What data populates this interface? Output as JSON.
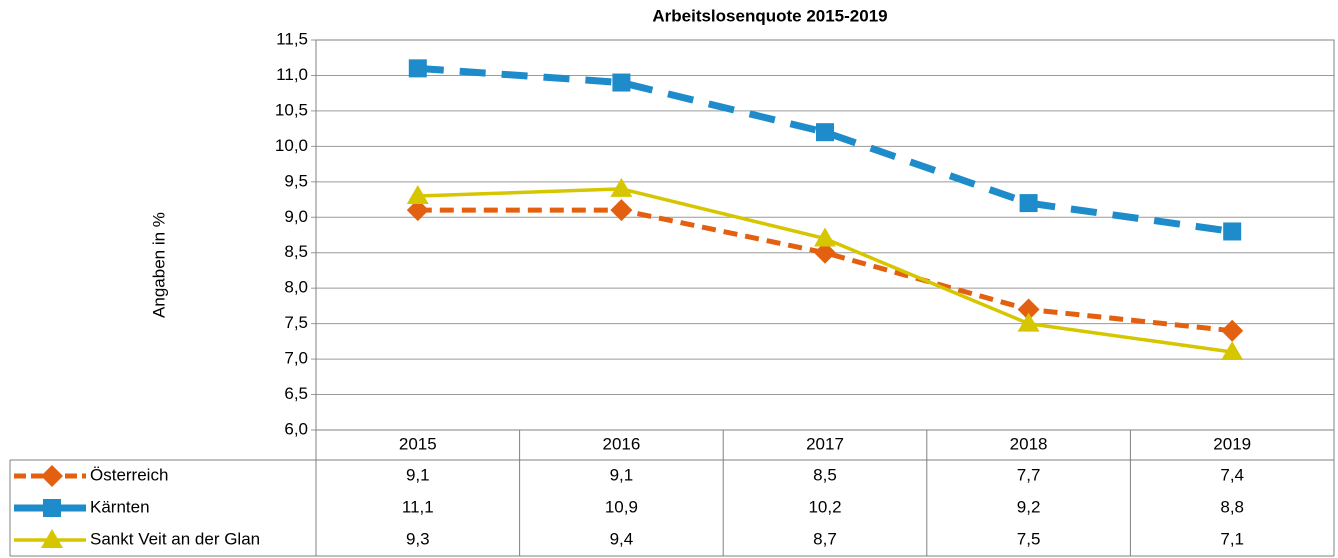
{
  "chart_data": {
    "type": "line",
    "title": "Arbeitslosenquote 2015-2019",
    "y_label": "Angaben in %",
    "categories": [
      "2015",
      "2016",
      "2017",
      "2018",
      "2019"
    ],
    "series": [
      {
        "name": "Österreich",
        "color": "#e2600f",
        "marker": "diamond",
        "dash": "dashed",
        "values": [
          9.1,
          9.1,
          8.5,
          7.7,
          7.4
        ],
        "value_labels": [
          "9,1",
          "9,1",
          "8,5",
          "7,7",
          "7,4"
        ]
      },
      {
        "name": "Kärnten",
        "color": "#1e8bca",
        "marker": "square",
        "dash": "long-dashed",
        "values": [
          11.1,
          10.9,
          10.2,
          9.2,
          8.8
        ],
        "value_labels": [
          "11,1",
          "10,9",
          "10,2",
          "9,2",
          "8,8"
        ]
      },
      {
        "name": "Sankt Veit an der Glan",
        "color": "#d6c600",
        "marker": "triangle",
        "dash": "solid",
        "values": [
          9.3,
          9.4,
          8.7,
          7.5,
          7.1
        ],
        "value_labels": [
          "9,3",
          "9,4",
          "8,7",
          "7,5",
          "7,1"
        ]
      }
    ],
    "ylim": [
      6,
      11.5
    ],
    "yticks": [
      {
        "value": 6,
        "label": "6,0"
      },
      {
        "value": 6.5,
        "label": "6,5"
      },
      {
        "value": 7,
        "label": "7,0"
      },
      {
        "value": 7.5,
        "label": "7,5"
      },
      {
        "value": 8,
        "label": "8,0"
      },
      {
        "value": 8.5,
        "label": "8,5"
      },
      {
        "value": 9,
        "label": "9,0"
      },
      {
        "value": 9.5,
        "label": "9,5"
      },
      {
        "value": 10,
        "label": "10,0"
      },
      {
        "value": 10.5,
        "label": "10,5"
      },
      {
        "value": 11,
        "label": "11,0"
      },
      {
        "value": 11.5,
        "label": "11,5"
      }
    ],
    "grid": true
  }
}
